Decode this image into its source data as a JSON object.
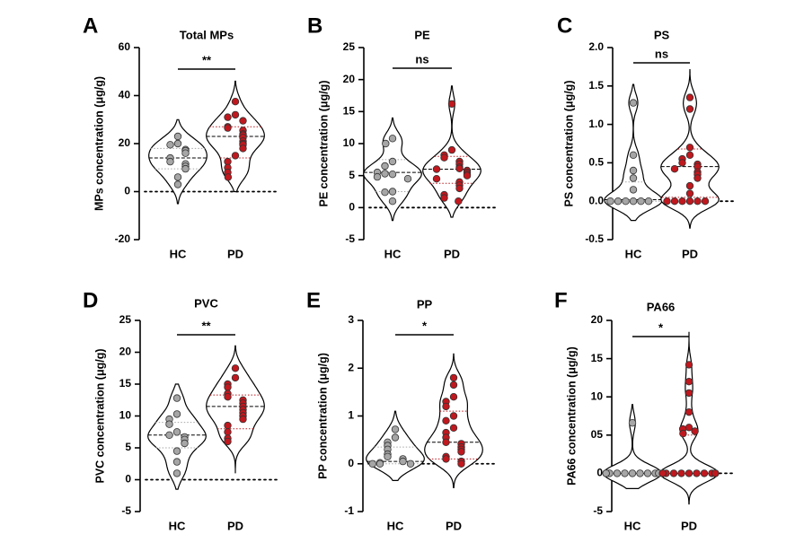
{
  "chart_data": [
    {
      "letter": "A",
      "type": "violin",
      "title": "Total MPs",
      "ylabel": "MPs concentration (μg/g)",
      "ylim": [
        -20,
        60
      ],
      "yticks": [
        "-20",
        "0",
        "20",
        "40",
        "60"
      ],
      "categories": [
        "HC",
        "PD"
      ],
      "significance": "**",
      "series": [
        {
          "name": "HC",
          "color": "#a6a6a6",
          "range": [
            -5,
            30
          ],
          "median": 14,
          "quartiles": [
            9.5,
            18
          ],
          "values": [
            23,
            20,
            19.5,
            17.5,
            17,
            16,
            14,
            12.5,
            11.5,
            10.5,
            9.5,
            6,
            3
          ]
        },
        {
          "name": "PD",
          "color": "#c0181e",
          "range": [
            0,
            46
          ],
          "median": 23,
          "quartiles": [
            14,
            27
          ],
          "values": [
            37.5,
            32,
            31,
            29.5,
            27,
            26.5,
            25.5,
            24,
            23.5,
            22.5,
            21,
            20,
            19.5,
            18,
            15,
            12.5,
            10,
            8,
            6
          ]
        }
      ]
    },
    {
      "letter": "B",
      "type": "violin",
      "title": "PE",
      "ylabel": "PE concentration (μg/g)",
      "ylim": [
        -5,
        25
      ],
      "yticks": [
        "-5",
        "0",
        "5",
        "10",
        "15",
        "20",
        "25"
      ],
      "categories": [
        "HC",
        "PD"
      ],
      "significance": "ns",
      "series": [
        {
          "name": "HC",
          "color": "#a6a6a6",
          "range": [
            -2,
            14
          ],
          "median": 5.5,
          "quartiles": [
            2.5,
            7.5
          ],
          "values": [
            10.8,
            10,
            7.2,
            6.5,
            5.2,
            5.3,
            5.5,
            4.8,
            4.5,
            2.5,
            2.4,
            1
          ]
        },
        {
          "name": "PD",
          "color": "#c0181e",
          "range": [
            -1.5,
            19
          ],
          "median": 6,
          "quartiles": [
            3.8,
            8
          ],
          "values": [
            16.2,
            9,
            8.2,
            7.8,
            7.2,
            6.8,
            6.3,
            6.1,
            6,
            5.8,
            5.5,
            5.2,
            5,
            4.5,
            4,
            3.5,
            3,
            2,
            1.5,
            1
          ]
        }
      ]
    },
    {
      "letter": "C",
      "type": "violin",
      "title": "PS",
      "ylabel": "PS concentration (μg/g)",
      "ylim": [
        -0.5,
        2.0
      ],
      "yticks": [
        "-0.5",
        "0.0",
        "0.5",
        "1.0",
        "1.5",
        "2.0"
      ],
      "categories": [
        "HC",
        "PD"
      ],
      "significance": "ns",
      "series": [
        {
          "name": "HC",
          "color": "#a6a6a6",
          "range": [
            -0.25,
            1.52
          ],
          "median": 0.02,
          "quartiles": [
            0.0,
            0.25
          ],
          "values": [
            1.28,
            0.6,
            0.4,
            0.3,
            0.15,
            0,
            0,
            0,
            0,
            0,
            0
          ]
        },
        {
          "name": "PD",
          "color": "#c0181e",
          "range": [
            -0.35,
            1.72
          ],
          "median": 0.45,
          "quartiles": [
            0.05,
            0.68
          ],
          "values": [
            1.35,
            1.2,
            0.7,
            0.6,
            0.55,
            0.5,
            0.48,
            0.45,
            0.42,
            0.38,
            0.35,
            0.3,
            0.2,
            0.1,
            0,
            0,
            0,
            0,
            0,
            0
          ]
        }
      ]
    },
    {
      "letter": "D",
      "type": "violin",
      "title": "PVC",
      "ylabel": "PVC concentration (μg/g)",
      "ylim": [
        -5,
        25
      ],
      "yticks": [
        "-5",
        "0",
        "5",
        "10",
        "15",
        "20",
        "25"
      ],
      "categories": [
        "HC",
        "PD"
      ],
      "significance": "**",
      "series": [
        {
          "name": "HC",
          "color": "#a6a6a6",
          "range": [
            -1.5,
            15
          ],
          "median": 7,
          "quartiles": [
            5,
            9
          ],
          "values": [
            12.8,
            10.3,
            9.5,
            8.7,
            7.5,
            7,
            6.7,
            6.3,
            5.7,
            4.5,
            2.8,
            1
          ]
        },
        {
          "name": "PD",
          "color": "#c0181e",
          "range": [
            1,
            21
          ],
          "median": 11.5,
          "quartiles": [
            8,
            13.3
          ],
          "values": [
            17.5,
            16,
            15,
            14.5,
            13.5,
            13,
            12.5,
            12,
            11.5,
            11,
            10.5,
            10,
            9.5,
            8.5,
            7.5,
            6.5,
            6
          ]
        }
      ]
    },
    {
      "letter": "E",
      "type": "violin",
      "title": "PP",
      "ylabel": "PP concentration (μg/g)",
      "ylim": [
        -1,
        3
      ],
      "yticks": [
        "-1",
        "0",
        "1",
        "2",
        "3"
      ],
      "categories": [
        "HC",
        "PD"
      ],
      "significance": "*",
      "series": [
        {
          "name": "HC",
          "color": "#a6a6a6",
          "range": [
            -0.35,
            1.1
          ],
          "median": 0.05,
          "quartiles": [
            0.0,
            0.35
          ],
          "values": [
            0.72,
            0.55,
            0.45,
            0.38,
            0.3,
            0.2,
            0.15,
            0.1,
            0.05,
            0.02,
            0,
            0,
            0
          ]
        },
        {
          "name": "PD",
          "color": "#c0181e",
          "range": [
            -0.5,
            2.3
          ],
          "median": 0.45,
          "quartiles": [
            0.1,
            1.1
          ],
          "values": [
            1.8,
            1.65,
            1.4,
            1.3,
            1.2,
            1.0,
            0.9,
            0.75,
            0.65,
            0.55,
            0.45,
            0.42,
            0.35,
            0.3,
            0.25,
            0.15,
            0.1,
            0.05,
            0
          ]
        }
      ]
    },
    {
      "letter": "F",
      "type": "violin",
      "title": "PA66",
      "ylabel": "PA66 concentration (μg/g)",
      "ylim": [
        -5,
        20
      ],
      "yticks": [
        "-5",
        "0",
        "05",
        "10",
        "15",
        "20"
      ],
      "categories": [
        "HC",
        "PD"
      ],
      "significance": "*",
      "series": [
        {
          "name": "HC",
          "color": "#a6a6a6",
          "range": [
            -2,
            9
          ],
          "median": 0,
          "quartiles": [
            0,
            0
          ],
          "values": [
            6.6,
            0,
            0,
            0,
            0,
            0,
            0,
            0,
            0,
            0,
            0
          ]
        },
        {
          "name": "PD",
          "color": "#c0181e",
          "range": [
            -4,
            18.5
          ],
          "median": 0,
          "quartiles": [
            0,
            5
          ],
          "values": [
            14.2,
            12,
            10.5,
            8,
            6,
            5.8,
            5.5,
            5.2,
            0,
            0,
            0,
            0,
            0,
            0,
            0,
            0,
            0,
            0,
            0,
            0,
            0
          ]
        }
      ]
    }
  ]
}
